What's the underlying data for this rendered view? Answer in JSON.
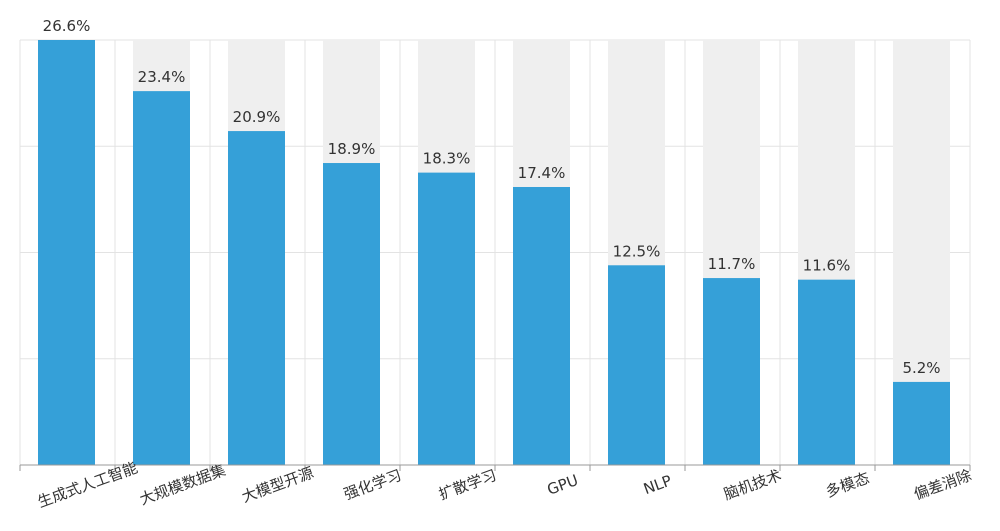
{
  "chart_data": {
    "type": "bar",
    "categories": [
      "生成式人工智能",
      "大规模数据集",
      "大模型开源",
      "强化学习",
      "扩散学习",
      "GPU",
      "NLP",
      "脑机技术",
      "多模态",
      "偏差消除"
    ],
    "values": [
      26.6,
      23.4,
      20.9,
      18.9,
      18.3,
      17.4,
      12.5,
      11.7,
      11.6,
      5.2
    ],
    "data_labels": [
      "26.6%",
      "23.4%",
      "20.9%",
      "18.9%",
      "18.3%",
      "17.4%",
      "12.5%",
      "11.7%",
      "11.6%",
      "5.2%"
    ],
    "unit": "%",
    "ylim": [
      0,
      26.6
    ],
    "grid": true,
    "bar_background": true,
    "xtick_rotation_deg": -20,
    "colors": {
      "bar": "#35a0d8",
      "bar_background": "#efefef",
      "grid": "#e3e3e3",
      "axis": "#999999",
      "label": "#333333"
    }
  }
}
